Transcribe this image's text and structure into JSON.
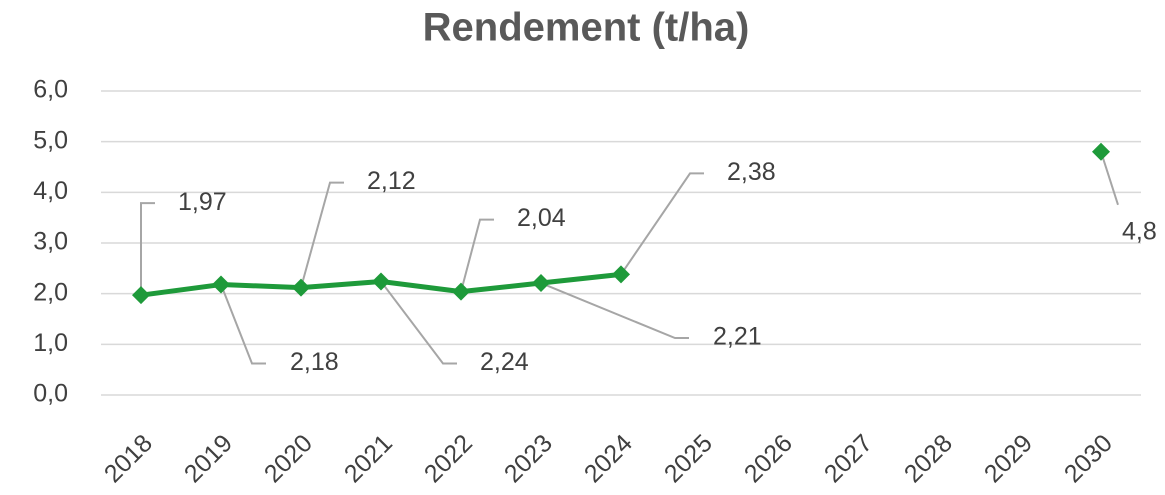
{
  "chart_data": {
    "type": "line",
    "title": "Rendement (t/ha)",
    "categories": [
      "2018",
      "2019",
      "2020",
      "2021",
      "2022",
      "2023",
      "2024",
      "2025",
      "2026",
      "2027",
      "2028",
      "2029",
      "2030"
    ],
    "series": [
      {
        "name": "Rendement",
        "color": "#1e9a3a",
        "values": [
          1.97,
          2.18,
          2.12,
          2.24,
          2.04,
          2.21,
          2.38,
          null,
          null,
          null,
          null,
          null,
          4.8
        ],
        "value_labels": [
          "1,97",
          "2,18",
          "2,12",
          "2,24",
          "2,04",
          "2,21",
          "2,38",
          null,
          null,
          null,
          null,
          null,
          "4,8"
        ]
      }
    ],
    "ylim": [
      0,
      6
    ],
    "yticks": [
      {
        "value": 0,
        "label": "0,0"
      },
      {
        "value": 1,
        "label": "1,0"
      },
      {
        "value": 2,
        "label": "2,0"
      },
      {
        "value": 3,
        "label": "3,0"
      },
      {
        "value": 4,
        "label": "4,0"
      },
      {
        "value": 5,
        "label": "5,0"
      },
      {
        "value": 6,
        "label": "6,0"
      }
    ],
    "grid": true
  }
}
